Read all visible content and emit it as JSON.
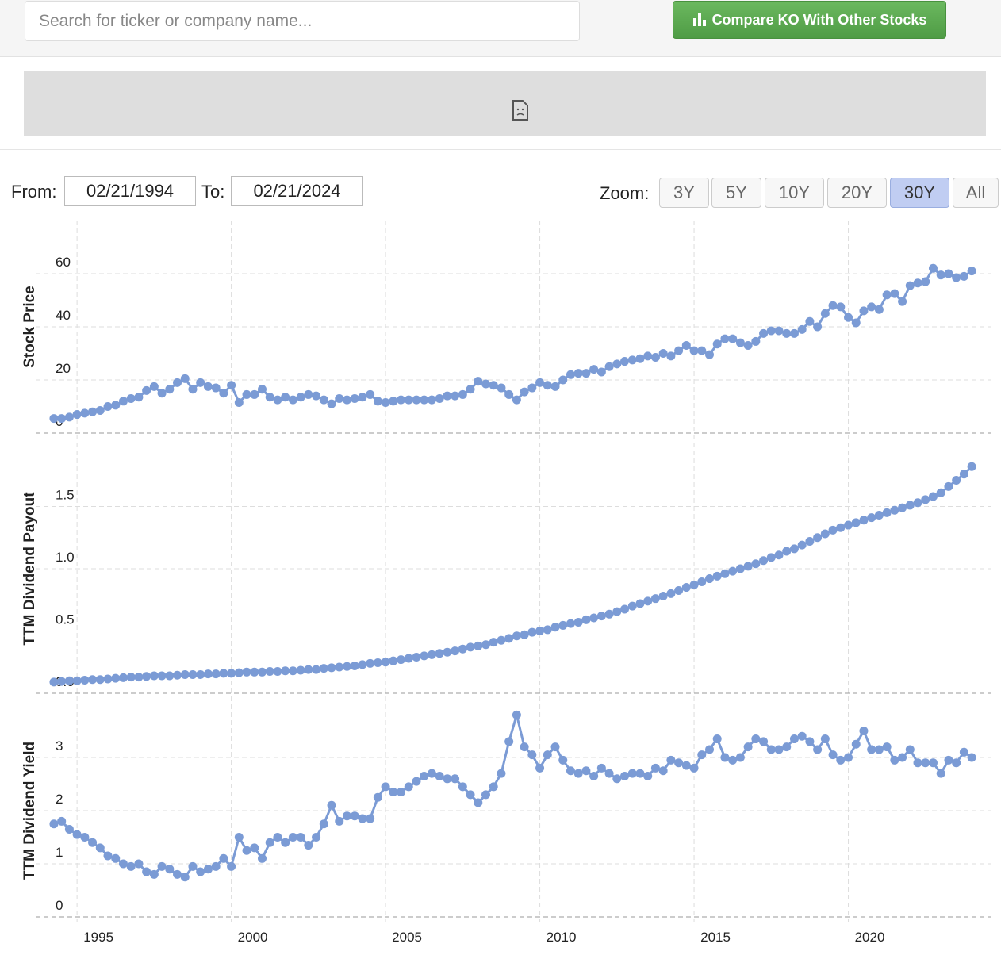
{
  "search": {
    "placeholder": "Search for ticker or company name..."
  },
  "compare_button": {
    "label": "Compare KO With Other Stocks"
  },
  "date_range": {
    "from_label": "From:",
    "from": "02/21/1994",
    "to_label": "To:",
    "to": "02/21/2024"
  },
  "zoom": {
    "label": "Zoom:",
    "options": [
      "3Y",
      "5Y",
      "10Y",
      "20Y",
      "30Y",
      "All"
    ],
    "selected": "30Y"
  },
  "chart_data": {
    "type": "line",
    "color": "#7b9bd5",
    "x": [
      1994.25,
      1994.5,
      1994.75,
      1995,
      1995.25,
      1995.5,
      1995.75,
      1996,
      1996.25,
      1996.5,
      1996.75,
      1997,
      1997.25,
      1997.5,
      1997.75,
      1998,
      1998.25,
      1998.5,
      1998.75,
      1999,
      1999.25,
      1999.5,
      1999.75,
      2000,
      2000.25,
      2000.5,
      2000.75,
      2001,
      2001.25,
      2001.5,
      2001.75,
      2002,
      2002.25,
      2002.5,
      2002.75,
      2003,
      2003.25,
      2003.5,
      2003.75,
      2004,
      2004.25,
      2004.5,
      2004.75,
      2005,
      2005.25,
      2005.5,
      2005.75,
      2006,
      2006.25,
      2006.5,
      2006.75,
      2007,
      2007.25,
      2007.5,
      2007.75,
      2008,
      2008.25,
      2008.5,
      2008.75,
      2009,
      2009.25,
      2009.5,
      2009.75,
      2010,
      2010.25,
      2010.5,
      2010.75,
      2011,
      2011.25,
      2011.5,
      2011.75,
      2012,
      2012.25,
      2012.5,
      2012.75,
      2013,
      2013.25,
      2013.5,
      2013.75,
      2014,
      2014.25,
      2014.5,
      2014.75,
      2015,
      2015.25,
      2015.5,
      2015.75,
      2016,
      2016.25,
      2016.5,
      2016.75,
      2017,
      2017.25,
      2017.5,
      2017.75,
      2018,
      2018.25,
      2018.5,
      2018.75,
      2019,
      2019.25,
      2019.5,
      2019.75,
      2020,
      2020.25,
      2020.5,
      2020.75,
      2021,
      2021.25,
      2021.5,
      2021.75,
      2022,
      2022.25,
      2022.5,
      2022.75,
      2023,
      2023.25,
      2023.5,
      2023.75,
      2024
    ],
    "xlim": [
      1993.66,
      2024.64
    ],
    "xticks": [
      1995,
      2000,
      2005,
      2010,
      2015,
      2020
    ],
    "grid": true,
    "series": [
      {
        "name": "Stock Price",
        "ylim": [
          0,
          80
        ],
        "yticks": [
          0,
          20,
          40,
          60
        ],
        "values": [
          5.5,
          5.5,
          6,
          7,
          7.5,
          8,
          8.5,
          10,
          10.5,
          12,
          13,
          13.5,
          16,
          17.5,
          15,
          16.5,
          19,
          20.5,
          16.5,
          19,
          17.5,
          17,
          15,
          18,
          11.5,
          14.5,
          14.5,
          16.5,
          13.5,
          12.5,
          13.5,
          12.5,
          13.5,
          14.5,
          14,
          12.5,
          11,
          13,
          12.5,
          13,
          13.5,
          14.5,
          12,
          11.5,
          12,
          12.5,
          12.5,
          12.5,
          12.5,
          12.5,
          13,
          14,
          14,
          14.5,
          16.5,
          19.5,
          18.5,
          18,
          17,
          14.5,
          12.5,
          15.5,
          17,
          19,
          18,
          17.5,
          20,
          22,
          22.5,
          22.5,
          24,
          23,
          25,
          26,
          27,
          27.5,
          28,
          29,
          28.5,
          30,
          29,
          31,
          33,
          31,
          31,
          29.5,
          33.5,
          35.5,
          35.5,
          34,
          33,
          34.5,
          37.5,
          38.5,
          38.5,
          37.5,
          37.5,
          39,
          42,
          40,
          45,
          48,
          47.5,
          43.5,
          41.5,
          46,
          47.5,
          46.5,
          52,
          52.5,
          49.5,
          55.5,
          56.5,
          57,
          62,
          59.5,
          60,
          58.5,
          59,
          61
        ]
      },
      {
        "name": "TTM Dividend Payout",
        "ylim": [
          0,
          2
        ],
        "yticks": [
          {
            "value": 0,
            "label": "0.0"
          },
          0.5,
          {
            "value": 1,
            "label": "1.0"
          },
          1.5
        ],
        "values": [
          0.09,
          0.095,
          0.1,
          0.1,
          0.105,
          0.11,
          0.11,
          0.115,
          0.12,
          0.125,
          0.13,
          0.13,
          0.135,
          0.14,
          0.14,
          0.14,
          0.145,
          0.15,
          0.15,
          0.15,
          0.155,
          0.155,
          0.16,
          0.16,
          0.165,
          0.17,
          0.17,
          0.17,
          0.175,
          0.175,
          0.18,
          0.18,
          0.185,
          0.19,
          0.19,
          0.2,
          0.205,
          0.21,
          0.215,
          0.22,
          0.23,
          0.24,
          0.245,
          0.25,
          0.26,
          0.27,
          0.28,
          0.29,
          0.3,
          0.31,
          0.32,
          0.33,
          0.34,
          0.355,
          0.37,
          0.38,
          0.39,
          0.41,
          0.425,
          0.44,
          0.46,
          0.47,
          0.49,
          0.5,
          0.51,
          0.53,
          0.545,
          0.56,
          0.57,
          0.59,
          0.605,
          0.62,
          0.635,
          0.655,
          0.675,
          0.7,
          0.72,
          0.74,
          0.76,
          0.78,
          0.8,
          0.825,
          0.85,
          0.87,
          0.895,
          0.92,
          0.94,
          0.96,
          0.98,
          1.0,
          1.02,
          1.04,
          1.065,
          1.09,
          1.11,
          1.14,
          1.16,
          1.19,
          1.22,
          1.25,
          1.28,
          1.31,
          1.33,
          1.35,
          1.37,
          1.39,
          1.41,
          1.43,
          1.45,
          1.47,
          1.49,
          1.51,
          1.53,
          1.555,
          1.58,
          1.61,
          1.66,
          1.71,
          1.76,
          1.82
        ]
      },
      {
        "name": "TTM Dividend Yield",
        "ylim": [
          0,
          4
        ],
        "yticks": [
          0,
          1,
          2,
          3
        ],
        "values": [
          1.75,
          1.8,
          1.65,
          1.55,
          1.5,
          1.4,
          1.3,
          1.15,
          1.1,
          1.0,
          0.95,
          1.0,
          0.85,
          0.8,
          0.95,
          0.9,
          0.8,
          0.75,
          0.95,
          0.85,
          0.9,
          0.95,
          1.1,
          0.95,
          1.5,
          1.25,
          1.3,
          1.1,
          1.4,
          1.5,
          1.4,
          1.5,
          1.5,
          1.35,
          1.5,
          1.75,
          2.1,
          1.8,
          1.9,
          1.9,
          1.85,
          1.85,
          2.25,
          2.45,
          2.35,
          2.35,
          2.45,
          2.55,
          2.65,
          2.7,
          2.65,
          2.6,
          2.6,
          2.45,
          2.3,
          2.15,
          2.3,
          2.45,
          2.7,
          3.3,
          3.8,
          3.2,
          3.05,
          2.8,
          3.05,
          3.2,
          2.95,
          2.75,
          2.7,
          2.75,
          2.65,
          2.8,
          2.7,
          2.6,
          2.65,
          2.7,
          2.7,
          2.65,
          2.8,
          2.75,
          2.95,
          2.9,
          2.85,
          2.8,
          3.05,
          3.15,
          3.35,
          3.0,
          2.95,
          3.0,
          3.2,
          3.35,
          3.3,
          3.15,
          3.15,
          3.2,
          3.35,
          3.4,
          3.3,
          3.15,
          3.35,
          3.05,
          2.95,
          3.0,
          3.25,
          3.5,
          3.15,
          3.15,
          3.2,
          2.95,
          3.0,
          3.15,
          2.9,
          2.9,
          2.9,
          2.7,
          2.95,
          2.9,
          3.1,
          3.0
        ]
      }
    ]
  }
}
